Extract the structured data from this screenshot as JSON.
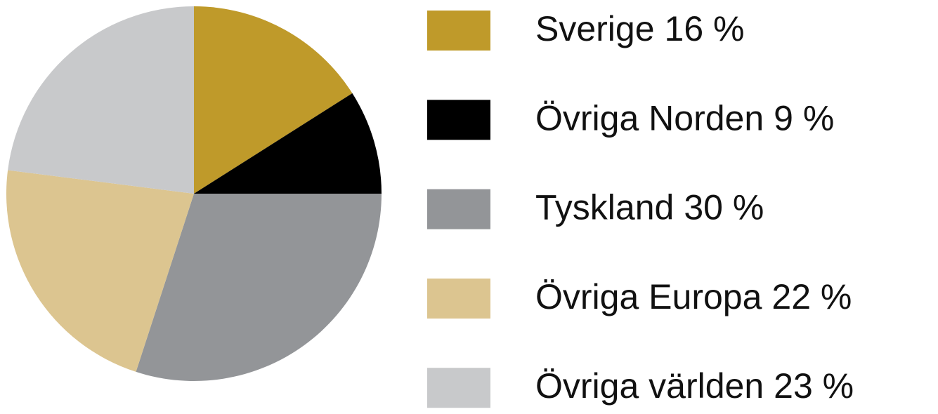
{
  "chart_data": {
    "type": "pie",
    "categories": [
      "Sverige",
      "Övriga Norden",
      "Tyskland",
      "Övriga Europa",
      "Övriga världen"
    ],
    "values": [
      16,
      9,
      30,
      22,
      23
    ],
    "value_labels": [
      "16 %",
      "9 %",
      "30 %",
      "22 %",
      "23 %"
    ],
    "colors": [
      "#bf9a2a",
      "#000000",
      "#939598",
      "#dcc590",
      "#c8c9cb"
    ],
    "legend": "right"
  }
}
